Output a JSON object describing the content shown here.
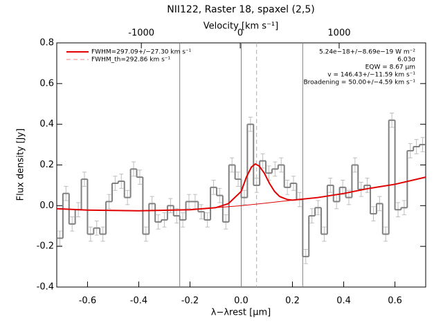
{
  "chart_data": {
    "type": "step",
    "title": "NII122, Raster 18, spaxel (2,5)",
    "xlabel": "λ−λrest [μm]",
    "ylabel": "Flux density [Jy]",
    "x2label": "Velocity [km s⁻¹]",
    "xlim": [
      -0.72,
      0.72
    ],
    "ylim": [
      -0.4,
      0.8
    ],
    "x2lim": [
      -1855,
      1875
    ],
    "xticks": [
      -0.6,
      -0.4,
      -0.2,
      {
        "value": 0,
        "label": "0.0"
      },
      0.2,
      0.4,
      0.6
    ],
    "yticks": [
      -0.4,
      -0.2,
      {
        "value": 0,
        "label": "0.0"
      },
      0.2,
      0.4,
      0.6,
      0.8
    ],
    "x2ticks": [
      -1000,
      0,
      1000
    ],
    "vlines": [
      -0.24,
      0,
      0.24
    ],
    "vline_color": "#808080",
    "dashed_vline": 0.06,
    "dashed_vline_color": "#aaaaaa",
    "series": [
      {
        "color": "#808080",
        "error_color": "#bdbdbd",
        "error": 0.035,
        "bins": [
          -0.72,
          -0.696,
          -0.672,
          -0.648,
          -0.624,
          -0.6,
          -0.576,
          -0.552,
          -0.528,
          -0.504,
          -0.48,
          -0.456,
          -0.432,
          -0.408,
          -0.384,
          -0.36,
          -0.336,
          -0.312,
          -0.288,
          -0.264,
          -0.24,
          -0.216,
          -0.192,
          -0.168,
          -0.144,
          -0.12,
          -0.096,
          -0.072,
          -0.048,
          -0.024,
          0,
          0.024,
          0.048,
          0.072,
          0.096,
          0.12,
          0.144,
          0.168,
          0.192,
          0.216,
          0.24,
          0.264,
          0.288,
          0.312,
          0.336,
          0.36,
          0.384,
          0.408,
          0.432,
          0.456,
          0.48,
          0.504,
          0.528,
          0.552,
          0.576,
          0.6,
          0.624,
          0.648,
          0.672,
          0.696,
          0.72
        ],
        "values": [
          -0.16,
          0.06,
          -0.09,
          -0.02,
          0.13,
          -0.14,
          -0.11,
          -0.14,
          0.02,
          0.11,
          0.12,
          0.04,
          0.18,
          0.14,
          -0.14,
          0.01,
          -0.08,
          -0.07,
          0.0,
          -0.05,
          -0.07,
          0.02,
          0.02,
          -0.03,
          -0.07,
          0.09,
          0.05,
          -0.08,
          0.2,
          0.13,
          0.04,
          0.4,
          0.1,
          0.22,
          0.16,
          0.18,
          0.2,
          0.09,
          0.11,
          0.03,
          -0.25,
          -0.05,
          -0.01,
          -0.14,
          0.1,
          0.02,
          0.09,
          0.04,
          0.2,
          0.08,
          0.1,
          -0.04,
          0.01,
          -0.14,
          0.42,
          -0.02,
          -0.01,
          0.27,
          0.29,
          0.3
        ]
      },
      {
        "name": "FWHM=297.09+/−27.30 km s⁻¹",
        "color": "#e00000",
        "width": 2,
        "x": [
          -0.72,
          -0.6,
          -0.4,
          -0.2,
          -0.1,
          -0.05,
          0,
          0.02,
          0.04,
          0.055,
          0.07,
          0.09,
          0.11,
          0.13,
          0.15,
          0.18,
          0.2,
          0.3,
          0.4,
          0.5,
          0.6,
          0.72
        ],
        "values": [
          -0.015,
          -0.022,
          -0.025,
          -0.02,
          -0.01,
          0.01,
          0.07,
          0.14,
          0.19,
          0.205,
          0.195,
          0.16,
          0.11,
          0.07,
          0.045,
          0.03,
          0.027,
          0.04,
          0.06,
          0.085,
          0.105,
          0.14
        ]
      },
      {
        "color": "#e00000",
        "width": 1,
        "x": [
          -0.1,
          0,
          0.1,
          0.2
        ],
        "values": [
          -0.01,
          0.0,
          0.013,
          0.027
        ]
      },
      {
        "name": "FWHM_th=292.86 km s⁻¹",
        "color": "#f08080",
        "dashed": true,
        "x": [],
        "values": []
      }
    ],
    "annotations": [
      "5.24e−18+/−8.69e−19 W m⁻²",
      "6.03σ",
      "EQW = 8.67 μm",
      "v = 146.43+/−11.59 km s⁻¹",
      "Broadening = 50.00+/−4.59 km s⁻¹"
    ]
  }
}
